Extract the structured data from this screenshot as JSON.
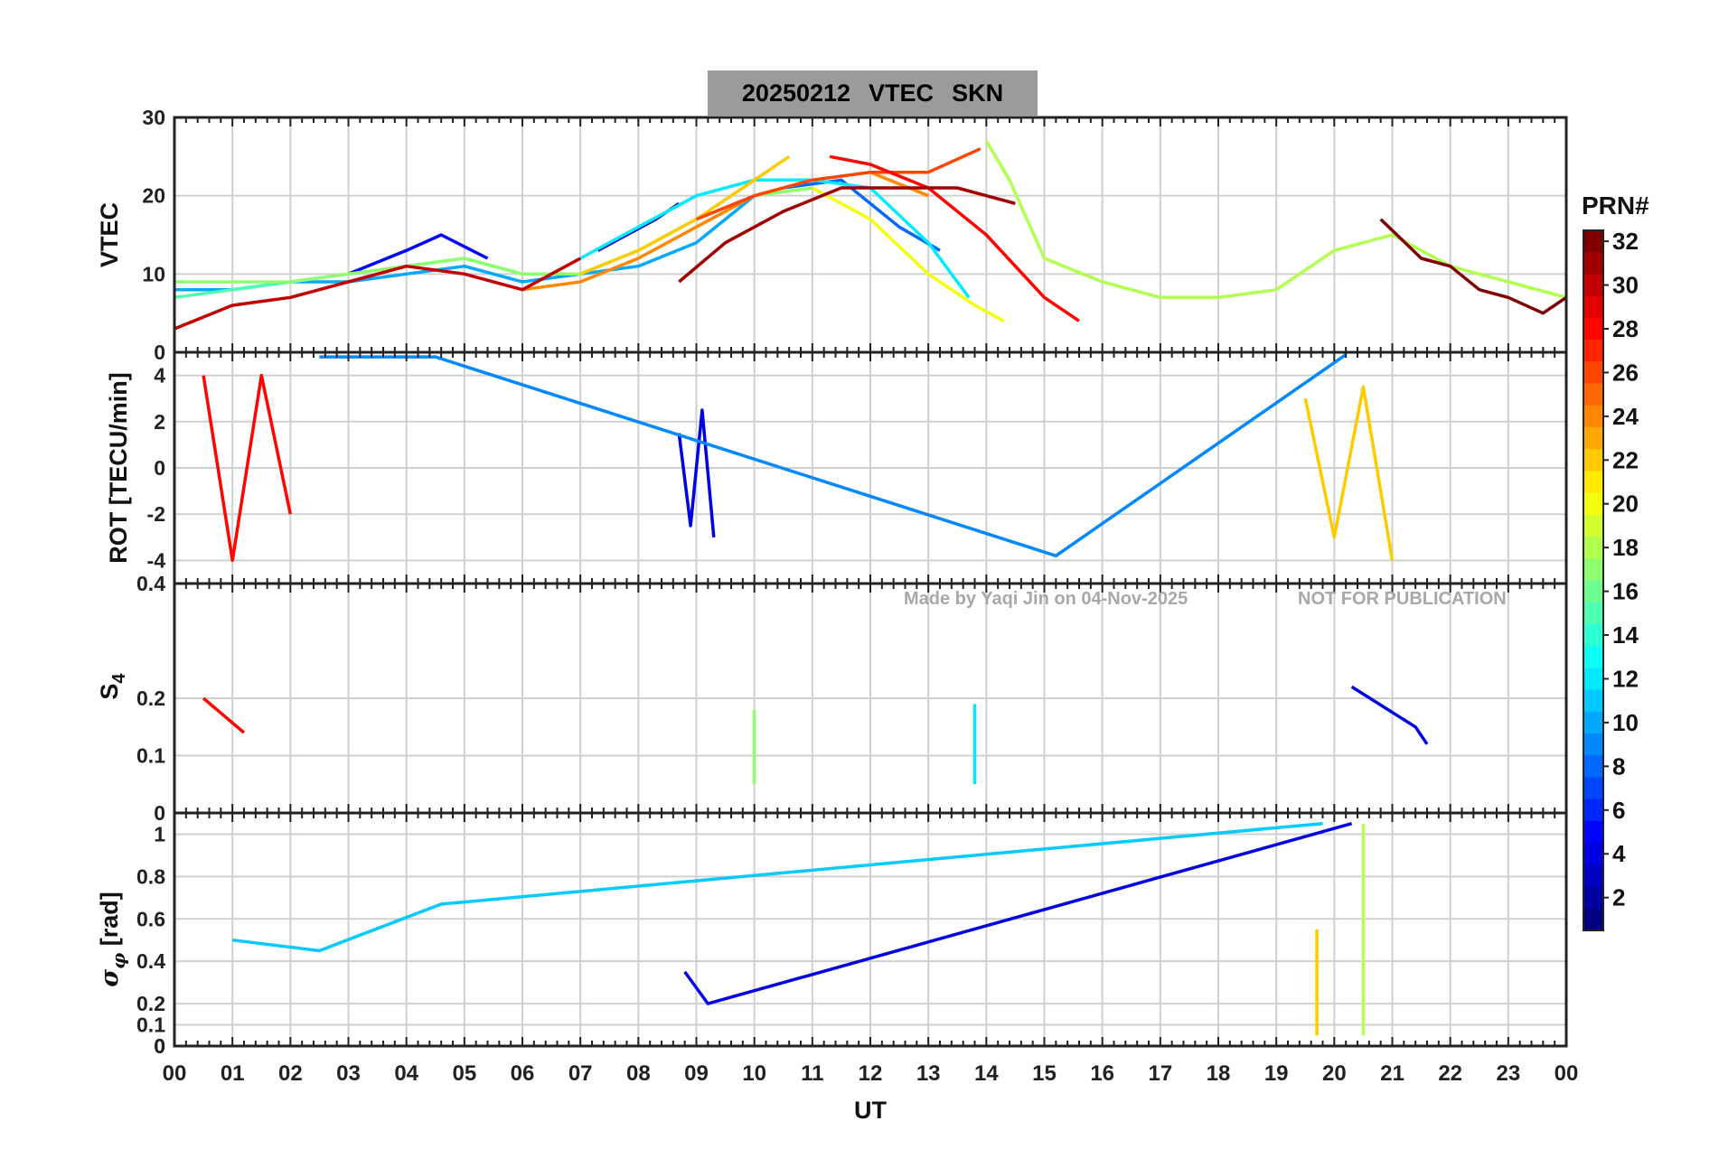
{
  "title": {
    "date": "20250212",
    "parameter": "VTEC",
    "station": "SKN"
  },
  "watermark": {
    "author": "Made by Yaqi Jin on 04-Nov-2025",
    "notice": "NOT FOR PUBLICATION"
  },
  "chart_data": [
    {
      "type": "line",
      "panel": "vtec",
      "ylabel": "VTEC",
      "ylim": [
        0,
        30
      ],
      "yticks": [
        0,
        10,
        20,
        30
      ],
      "series": [
        {
          "prn": 3,
          "x": [
            7.3,
            7.8,
            8.3,
            8.7
          ],
          "y": [
            13,
            15,
            17,
            19
          ]
        },
        {
          "prn": 5,
          "x": [
            3,
            4,
            4.6,
            5.4
          ],
          "y": [
            10,
            13,
            15,
            12
          ]
        },
        {
          "prn": 8,
          "x": [
            10.5,
            11.5,
            12.5,
            13.2
          ],
          "y": [
            21,
            22,
            16,
            13
          ]
        },
        {
          "prn": 10,
          "x": [
            0,
            1,
            2,
            3,
            4,
            5,
            6,
            7,
            8,
            9,
            10
          ],
          "y": [
            8,
            8,
            9,
            9,
            10,
            11,
            9,
            10,
            11,
            14,
            20
          ]
        },
        {
          "prn": 12,
          "x": [
            7,
            8,
            9,
            10,
            11,
            12,
            13,
            13.7
          ],
          "y": [
            12,
            16,
            20,
            22,
            22,
            21,
            14,
            7
          ]
        },
        {
          "prn": 15,
          "x": [
            0,
            1,
            2,
            3,
            4,
            5,
            6,
            7
          ],
          "y": [
            7,
            8,
            9,
            10,
            11,
            12,
            10,
            10
          ]
        },
        {
          "prn": 17,
          "x": [
            0,
            1,
            2,
            3,
            4,
            5,
            6,
            7,
            8,
            9,
            10,
            11
          ],
          "y": [
            9,
            9,
            9,
            10,
            11,
            12,
            10,
            10,
            13,
            17,
            20,
            21
          ]
        },
        {
          "prn": 18,
          "x": [
            14,
            14.4,
            15,
            16,
            17,
            18,
            19,
            20,
            21,
            22,
            23,
            24
          ],
          "y": [
            27,
            22,
            12,
            9,
            7,
            7,
            8,
            13,
            15,
            11,
            9,
            7
          ]
        },
        {
          "prn": 20,
          "x": [
            11,
            12,
            13,
            13.8,
            14.3
          ],
          "y": [
            21,
            17,
            10,
            6,
            4
          ]
        },
        {
          "prn": 22,
          "x": [
            7,
            8,
            9,
            10,
            10.6
          ],
          "y": [
            10,
            13,
            17,
            22,
            25
          ]
        },
        {
          "prn": 24,
          "x": [
            6,
            7,
            8,
            9,
            10,
            11,
            12,
            13
          ],
          "y": [
            8,
            9,
            12,
            16,
            20,
            22,
            23,
            20
          ]
        },
        {
          "prn": 26,
          "x": [
            9,
            10,
            11,
            12,
            13,
            13.9
          ],
          "y": [
            17,
            20,
            22,
            23,
            23,
            26
          ]
        },
        {
          "prn": 28,
          "x": [
            11.3,
            12,
            13,
            14,
            15,
            15.6
          ],
          "y": [
            25,
            24,
            21,
            15,
            7,
            4
          ]
        },
        {
          "prn": 30,
          "x": [
            0,
            1,
            2,
            3,
            4,
            5,
            6,
            7
          ],
          "y": [
            3,
            6,
            7,
            9,
            11,
            10,
            8,
            12
          ]
        },
        {
          "prn": 31,
          "x": [
            8.7,
            9.5,
            10.5,
            11.5,
            12.5,
            13.5,
            14.5
          ],
          "y": [
            9,
            14,
            18,
            21,
            21,
            21,
            19
          ]
        },
        {
          "prn": 32,
          "x": [
            20.8,
            21.5,
            22,
            22.5,
            23,
            23.6,
            24
          ],
          "y": [
            17,
            12,
            11,
            8,
            7,
            5,
            7
          ]
        }
      ]
    },
    {
      "type": "line",
      "panel": "rot",
      "ylabel": "ROT [TECU/min]",
      "ylim": [
        -5,
        5
      ],
      "yticks": [
        -4,
        -2,
        0,
        2,
        4
      ],
      "series": [
        {
          "prn": 4,
          "x": [
            8.7,
            8.9,
            9.1,
            9.3
          ],
          "y": [
            1.5,
            -2.5,
            2.5,
            -3
          ]
        },
        {
          "prn": 9,
          "x": [
            2.5,
            4.5,
            15.2,
            20.2
          ],
          "y": [
            4.8,
            4.8,
            -3.8,
            4.9
          ]
        },
        {
          "prn": 22,
          "x": [
            19.5,
            20,
            20.5,
            21
          ],
          "y": [
            3,
            -3,
            3.5,
            -4
          ]
        },
        {
          "prn": 28,
          "x": [
            0.5,
            1,
            1.5,
            2
          ],
          "y": [
            4,
            -4,
            4,
            -2
          ]
        }
      ]
    },
    {
      "type": "line",
      "panel": "s4",
      "ylabel": "S4",
      "ylim": [
        0,
        0.4
      ],
      "yticks": [
        0,
        0.1,
        0.2
      ],
      "series": [
        {
          "prn": 4,
          "x": [
            20.3,
            21.4,
            21.6
          ],
          "y": [
            0.22,
            0.15,
            0.12
          ]
        },
        {
          "prn": 12,
          "x": [
            13.8
          ],
          "y": [
            0.19
          ]
        },
        {
          "prn": 17,
          "x": [
            10
          ],
          "y": [
            0.18
          ]
        },
        {
          "prn": 28,
          "x": [
            0.5,
            1.2
          ],
          "y": [
            0.2,
            0.14
          ]
        }
      ]
    },
    {
      "type": "line",
      "panel": "sigma",
      "ylabel": "σφ [rad]",
      "ylim": [
        0,
        1.1
      ],
      "yticks": [
        0,
        0.1,
        0.2,
        0.4,
        0.6,
        0.8,
        1
      ],
      "series": [
        {
          "prn": 4,
          "x": [
            8.8,
            9.2,
            20.3
          ],
          "y": [
            0.35,
            0.2,
            1.05
          ]
        },
        {
          "prn": 11,
          "x": [
            1,
            2.5,
            4.6,
            19.8
          ],
          "y": [
            0.5,
            0.45,
            0.67,
            1.05
          ]
        },
        {
          "prn": 18,
          "x": [
            20.5
          ],
          "y": [
            1.05
          ]
        },
        {
          "prn": 22,
          "x": [
            19.7
          ],
          "y": [
            0.55
          ]
        }
      ]
    }
  ],
  "x_axis": {
    "label": "UT",
    "range": [
      0,
      24
    ],
    "ticks": [
      "00",
      "01",
      "02",
      "03",
      "04",
      "05",
      "06",
      "07",
      "08",
      "09",
      "10",
      "11",
      "12",
      "13",
      "14",
      "15",
      "16",
      "17",
      "18",
      "19",
      "20",
      "21",
      "22",
      "23",
      "00"
    ]
  },
  "colorbar": {
    "label": "PRN#",
    "range": [
      1,
      32
    ],
    "ticks": [
      2,
      4,
      6,
      8,
      10,
      12,
      14,
      16,
      18,
      20,
      22,
      24,
      26,
      28,
      30,
      32
    ]
  },
  "colors": {
    "colormap": "jet",
    "title_box": "#9b9b9b",
    "grid": "#d0d0d0"
  }
}
